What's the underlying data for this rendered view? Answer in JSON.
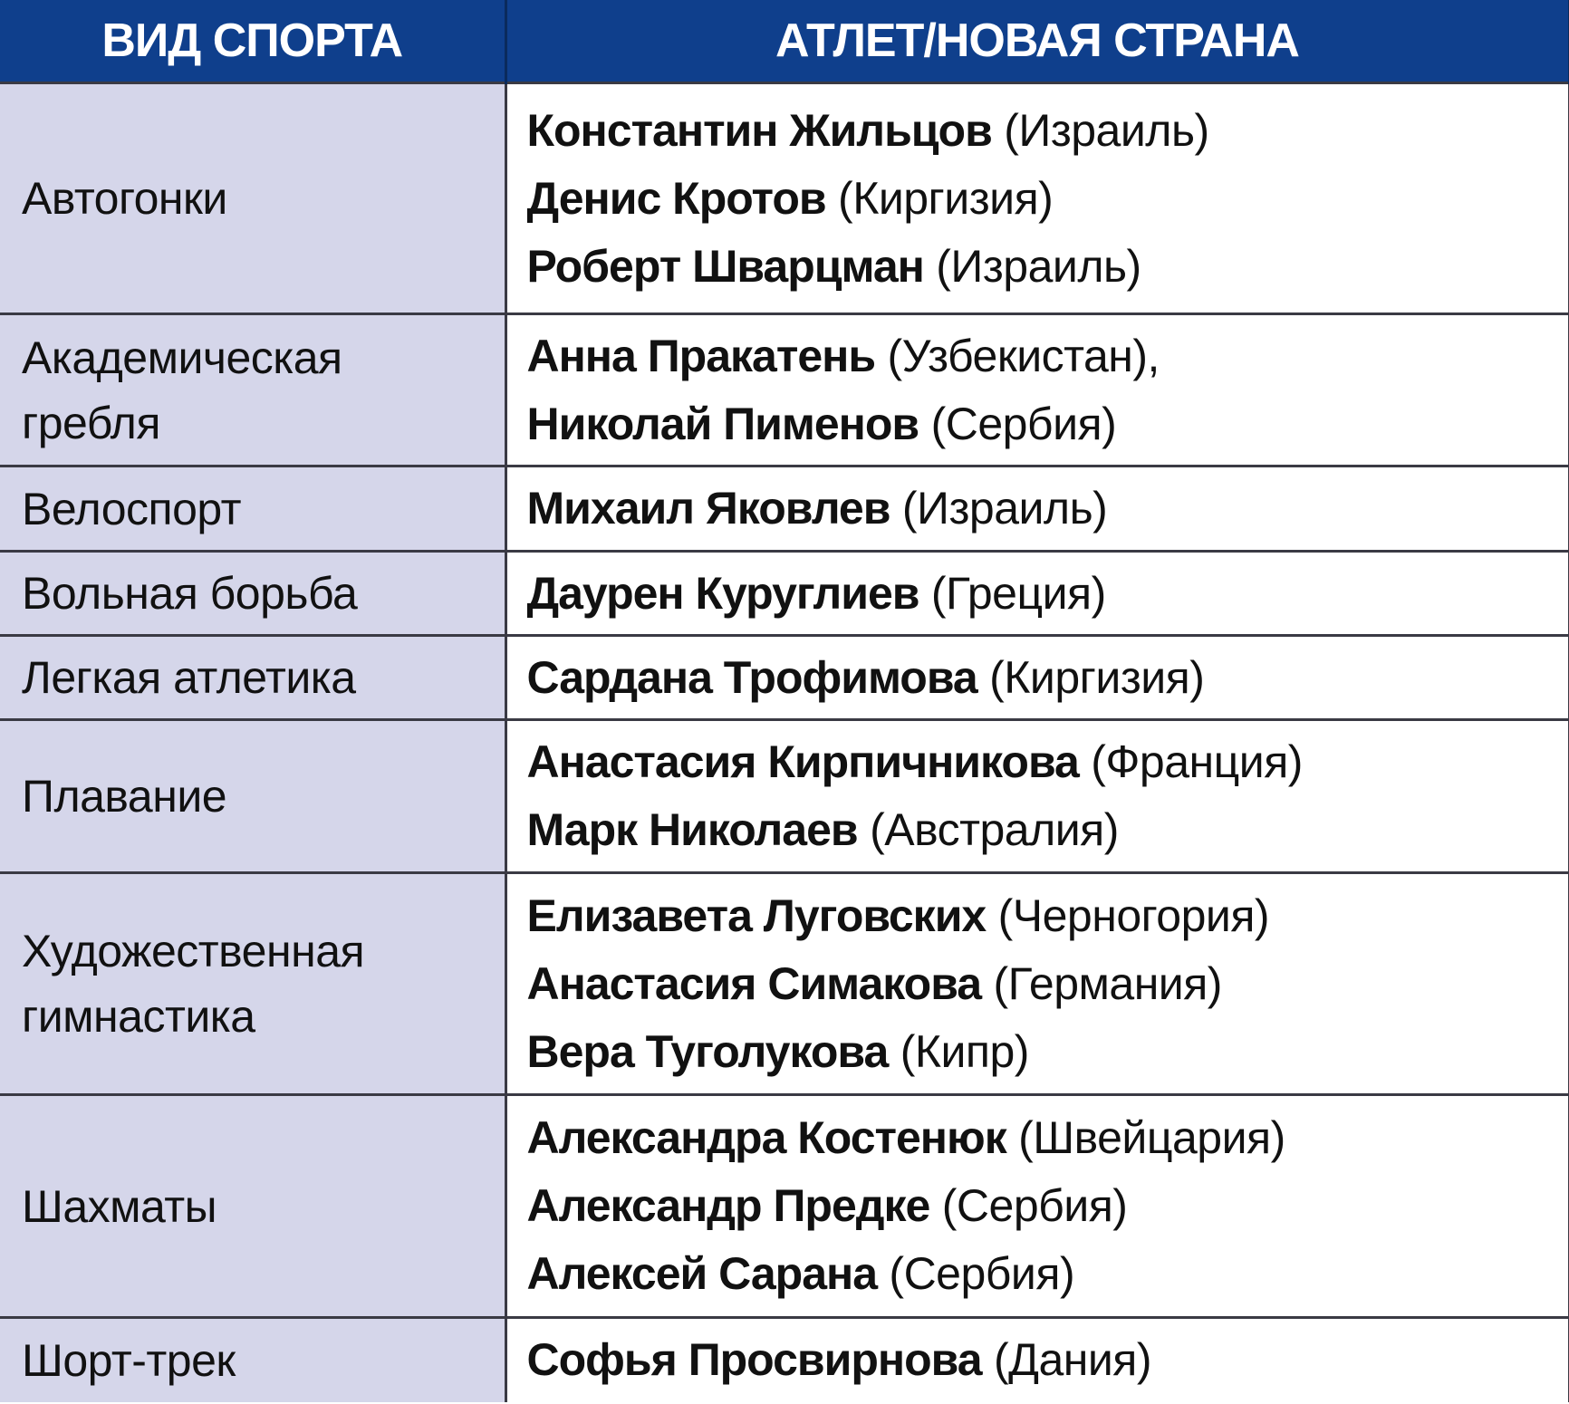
{
  "header": {
    "col1": "ВИД СПОРТА",
    "col2": "АТЛЕТ/НОВАЯ СТРАНА"
  },
  "colors": {
    "header_bg": "#0f3f8c",
    "sport_bg": "#d5d6ea"
  },
  "rows": [
    {
      "sport": "Автогонки",
      "athletes": [
        {
          "name": "Константин Жильцов",
          "country": "(Израиль)"
        },
        {
          "name": "Денис Кротов",
          "country": "(Киргизия)"
        },
        {
          "name": "Роберт Шварцман",
          "country": "(Израиль)"
        }
      ]
    },
    {
      "sport": "Академическая гребля",
      "athletes": [
        {
          "name": "Анна Пракатень",
          "country": "(Узбекистан),"
        },
        {
          "name": "Николай Пименов",
          "country": "(Сербия)"
        }
      ]
    },
    {
      "sport": "Велоспорт",
      "athletes": [
        {
          "name": "Михаил Яковлев",
          "country": "(Израиль)"
        }
      ]
    },
    {
      "sport": "Вольная борьба",
      "athletes": [
        {
          "name": "Даурен Куруглиев",
          "country": "(Греция)"
        }
      ]
    },
    {
      "sport": "Легкая атлетика",
      "athletes": [
        {
          "name": "Сардана Трофимова",
          "country": "(Киргизия)"
        }
      ]
    },
    {
      "sport": "Плавание",
      "athletes": [
        {
          "name": "Анастасия Кирпичникова",
          "country": "(Франция)"
        },
        {
          "name": "Марк Николаев",
          "country": "(Австралия)"
        }
      ]
    },
    {
      "sport": "Художественная гимнастика",
      "athletes": [
        {
          "name": "Елизавета Луговских",
          "country": "(Черногория)"
        },
        {
          "name": "Анастасия Симакова",
          "country": "(Германия)"
        },
        {
          "name": "Вера Туголукова",
          "country": "(Кипр)"
        }
      ]
    },
    {
      "sport": "Шахматы",
      "athletes": [
        {
          "name": "Александра Костенюк",
          "country": "(Швейцария)"
        },
        {
          "name": "Александр Предке",
          "country": "(Сербия)"
        },
        {
          "name": "Алексей Сарана",
          "country": "(Сербия)"
        }
      ]
    },
    {
      "sport": "Шорт-трек",
      "athletes": [
        {
          "name": "Софья Просвирнова",
          "country": "(Дания)"
        }
      ]
    }
  ]
}
